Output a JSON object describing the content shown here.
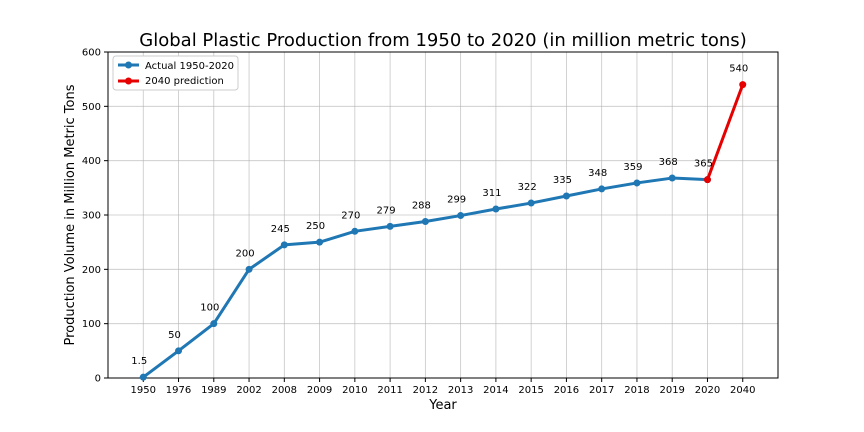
{
  "chart_data": {
    "type": "line",
    "title": "Global Plastic Production from 1950 to 2020 (in million metric tons)",
    "xlabel": "Year",
    "ylabel": "Production Volume in Million Metric Tons",
    "categories": [
      "1950",
      "1976",
      "1989",
      "2002",
      "2008",
      "2009",
      "2010",
      "2011",
      "2012",
      "2013",
      "2014",
      "2015",
      "2016",
      "2017",
      "2018",
      "2019",
      "2020",
      "2040"
    ],
    "ylim": [
      0,
      600
    ],
    "yticks": [
      0,
      100,
      200,
      300,
      400,
      500,
      600
    ],
    "grid": true,
    "legend_position": "upper-left",
    "series": [
      {
        "name": "Actual 1950-2020",
        "color": "#1f77b4",
        "x": [
          "1950",
          "1976",
          "1989",
          "2002",
          "2008",
          "2009",
          "2010",
          "2011",
          "2012",
          "2013",
          "2014",
          "2015",
          "2016",
          "2017",
          "2018",
          "2019",
          "2020"
        ],
        "values": [
          1.5,
          50,
          100,
          200,
          245,
          250,
          270,
          279,
          288,
          299,
          311,
          322,
          335,
          348,
          359,
          368,
          365
        ]
      },
      {
        "name": "2040 prediction",
        "color": "#e60000",
        "x": [
          "2020",
          "2040"
        ],
        "values": [
          365,
          540
        ]
      }
    ],
    "data_labels": [
      {
        "x": "1950",
        "text": "1.5",
        "value": 1.5
      },
      {
        "x": "1976",
        "text": "50",
        "value": 50
      },
      {
        "x": "1989",
        "text": "100",
        "value": 100
      },
      {
        "x": "2002",
        "text": "200",
        "value": 200
      },
      {
        "x": "2008",
        "text": "245",
        "value": 245
      },
      {
        "x": "2009",
        "text": "250",
        "value": 250
      },
      {
        "x": "2010",
        "text": "270",
        "value": 270
      },
      {
        "x": "2011",
        "text": "279",
        "value": 279
      },
      {
        "x": "2012",
        "text": "288",
        "value": 288
      },
      {
        "x": "2013",
        "text": "299",
        "value": 299
      },
      {
        "x": "2014",
        "text": "311",
        "value": 311
      },
      {
        "x": "2015",
        "text": "322",
        "value": 322
      },
      {
        "x": "2016",
        "text": "335",
        "value": 335
      },
      {
        "x": "2017",
        "text": "348",
        "value": 348
      },
      {
        "x": "2018",
        "text": "359",
        "value": 359
      },
      {
        "x": "2019",
        "text": "368",
        "value": 368
      },
      {
        "x": "2020",
        "text": "365",
        "value": 365
      },
      {
        "x": "2040",
        "text": "540",
        "value": 540
      }
    ]
  }
}
